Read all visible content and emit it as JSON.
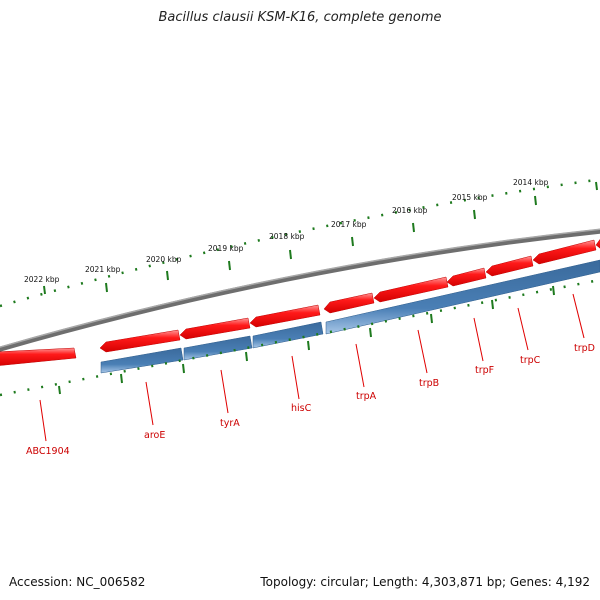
{
  "title": "Bacillus clausii KSM-K16, complete genome",
  "footer": {
    "accession": "Accession: NC_006582",
    "summary": "Topology: circular; Length: 4,303,871 bp; Genes: 4,192"
  },
  "colors": {
    "forward_gene": "#ff0000",
    "reverse_gene": "#4a7fb5",
    "backbone": "#808080",
    "ticks": "#1e7a1e",
    "gene_label": "#cc0000"
  },
  "kbp_labels": [
    "2022 kbp",
    "2021 kbp",
    "2020 kbp",
    "2019 kbp",
    "2018 kbp",
    "2017 kbp",
    "2016 kbp",
    "2015 kbp",
    "2014 kbp"
  ],
  "genes": [
    "ABC1904",
    "aroE",
    "tyrA",
    "hisC",
    "trpA",
    "trpB",
    "trpF",
    "trpC",
    "trpD"
  ]
}
